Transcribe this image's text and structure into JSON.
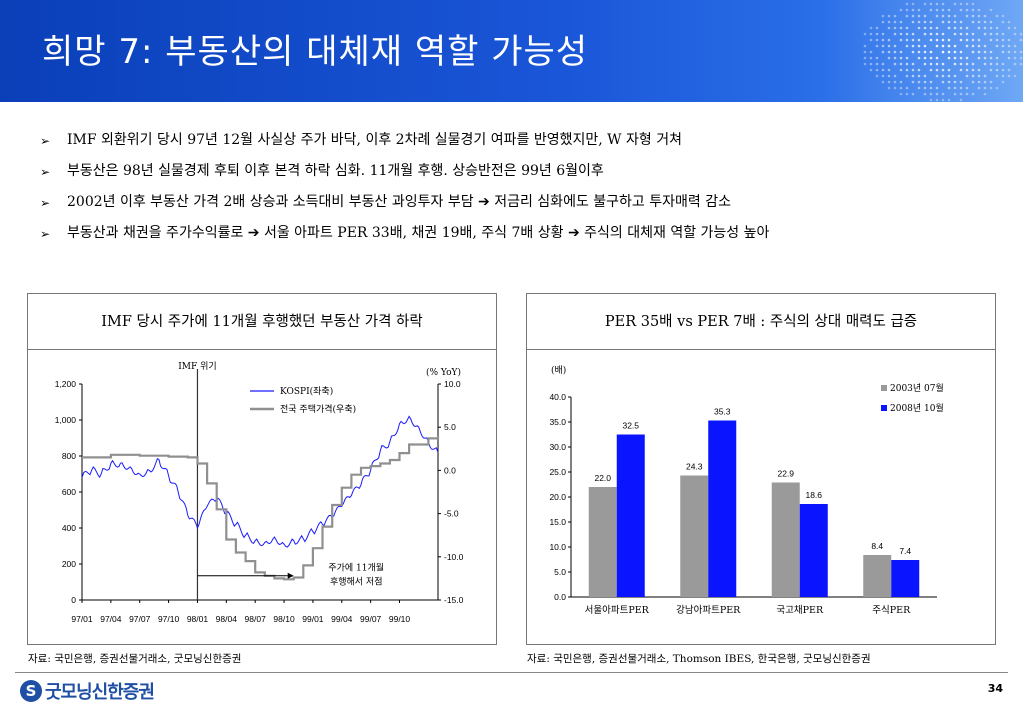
{
  "header": {
    "title": "희망 7: 부동산의 대체재 역할 가능성"
  },
  "bullets": [
    "IMF 외환위기 당시 97년 12월 사실상 주가 바닥, 이후 2차례 실물경기 여파를 반영했지만, W 자형 거쳐",
    "부동산은 98년 실물경제 후퇴 이후 본격 하락 심화. 11개월 후행. 상승반전은 99년 6월이후",
    "2002년 이후 부동산 가격 2배 상승과 소득대비 부동산 과잉투자 부담 ➔ 저금리 심화에도 불구하고 투자매력 감소",
    "부동산과 채권을 주가수익률로 ➔ 서울 아파트 PER 33배, 채권 19배, 주식 7배 상황 ➔ 주식의 대체재 역할 가능성 높아"
  ],
  "left_panel": {
    "title": "IMF 당시 주가에 11개월 후행했던 부동산 가격 하락",
    "source": "자료: 국민은행, 증권선물거래소, 굿모닝신한증권"
  },
  "right_panel": {
    "title": "PER 35배 vs PER 7배 : 주식의 상대 매력도 급증",
    "source": "자료: 국민은행, 증권선물거래소, Thomson IBES, 한국은행, 굿모닝신한증권"
  },
  "footer": {
    "brand": "굿모닝신한증권",
    "page": "34"
  },
  "chart_data": [
    {
      "type": "line",
      "x_ticks": [
        "97/01",
        "97/04",
        "97/07",
        "97/10",
        "98/01",
        "98/04",
        "98/07",
        "98/10",
        "99/01",
        "99/04",
        "99/07",
        "99/10"
      ],
      "left_axis": {
        "ticks": [
          "0",
          "200",
          "400",
          "600",
          "800",
          "1,000",
          "1,200"
        ],
        "ylim": [
          0,
          1200
        ]
      },
      "right_axis": {
        "ticks": [
          "-15.0",
          "-10.0",
          "-5.0",
          "0.0",
          "5.0",
          "10.0"
        ],
        "ylim": [
          -15,
          10
        ],
        "unit": "(% YoY)"
      },
      "annotations": {
        "imf": "IMF 위기",
        "lag_line1": "주가에 11개월",
        "lag_line2": "후행해서 저점"
      },
      "series": [
        {
          "name": "KOSPI(좌축)",
          "axis": "left",
          "color": "#1a1aff",
          "points": [
            [
              0,
              680
            ],
            [
              1,
              720
            ],
            [
              2,
              700
            ],
            [
              3,
              760
            ],
            [
              4,
              760
            ],
            [
              5,
              740
            ],
            [
              6,
              700
            ],
            [
              7,
              720
            ],
            [
              8,
              780
            ],
            [
              9,
              690
            ],
            [
              10,
              600
            ],
            [
              11,
              470
            ],
            [
              12,
              400
            ],
            [
              13,
              520
            ],
            [
              14,
              560
            ],
            [
              15,
              480
            ],
            [
              16,
              420
            ],
            [
              17,
              360
            ],
            [
              18,
              330
            ],
            [
              19,
              320
            ],
            [
              20,
              350
            ],
            [
              21,
              310
            ],
            [
              22,
              330
            ],
            [
              23,
              340
            ],
            [
              24,
              380
            ],
            [
              25,
              420
            ],
            [
              26,
              460
            ],
            [
              27,
              520
            ],
            [
              28,
              580
            ],
            [
              29,
              640
            ],
            [
              30,
              720
            ],
            [
              31,
              830
            ],
            [
              32,
              880
            ],
            [
              33,
              980
            ],
            [
              34,
              1020
            ],
            [
              35,
              960
            ],
            [
              36,
              880
            ],
            [
              37,
              820
            ]
          ]
        },
        {
          "name": "전국 주택가격(우축)",
          "axis": "right",
          "color": "#909090",
          "points": [
            [
              0,
              1.5
            ],
            [
              3,
              1.8
            ],
            [
              6,
              1.7
            ],
            [
              9,
              1.6
            ],
            [
              11,
              1.5
            ],
            [
              12,
              0.8
            ],
            [
              13,
              -1.5
            ],
            [
              14,
              -4.5
            ],
            [
              15,
              -8.0
            ],
            [
              16,
              -9.5
            ],
            [
              17,
              -10.5
            ],
            [
              18,
              -11.8
            ],
            [
              19,
              -12.2
            ],
            [
              20,
              -12.5
            ],
            [
              21,
              -12.6
            ],
            [
              22,
              -12.4
            ],
            [
              23,
              -11.0
            ],
            [
              24,
              -9.0
            ],
            [
              25,
              -6.5
            ],
            [
              26,
              -4.0
            ],
            [
              27,
              -2.0
            ],
            [
              28,
              -0.5
            ],
            [
              29,
              0.3
            ],
            [
              30,
              0.5
            ],
            [
              31,
              0.8
            ],
            [
              32,
              1.2
            ],
            [
              33,
              2.0
            ],
            [
              34,
              3.0
            ],
            [
              35,
              3.0
            ],
            [
              36,
              3.7
            ],
            [
              37,
              4.0
            ]
          ]
        }
      ]
    },
    {
      "type": "bar",
      "y_label": "(배)",
      "ylim": [
        0,
        40
      ],
      "y_ticks": [
        "0.0",
        "5.0",
        "10.0",
        "15.0",
        "20.0",
        "25.0",
        "30.0",
        "35.0",
        "40.0"
      ],
      "categories": [
        "서울아파트PER",
        "강남아파트PER",
        "국고채PER",
        "주식PER"
      ],
      "series": [
        {
          "name": "2003년 07월",
          "color": "#9a9a9a",
          "values": [
            22.0,
            24.3,
            22.9,
            8.4
          ]
        },
        {
          "name": "2008년 10월",
          "color": "#0a14ff",
          "values": [
            32.5,
            35.3,
            18.6,
            7.4
          ]
        }
      ]
    }
  ]
}
